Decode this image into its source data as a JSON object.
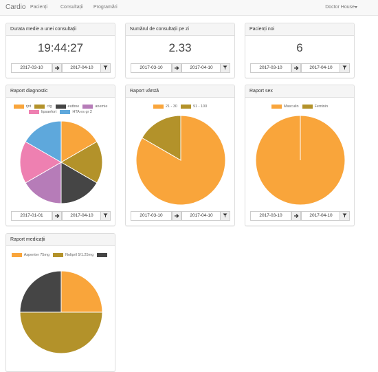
{
  "navbar": {
    "brand": "Cardio",
    "links": [
      "Pacienți",
      "Consultații",
      "Programări"
    ],
    "user": "Doctor House"
  },
  "stats": [
    {
      "title": "Durata medie a unei consultații",
      "value": "19:44:27",
      "from": "2017-03-10",
      "to": "2017-04-10"
    },
    {
      "title": "Numărul de consultații pe zi",
      "value": 2.33,
      "from": "2017-03-10",
      "to": "2017-04-10"
    },
    {
      "title": "Pacienți noi",
      "value": 6,
      "from": "2017-03-10",
      "to": "2017-04-10"
    }
  ],
  "charts": [
    {
      "type": "pie",
      "title": "Raport diagnostic",
      "labels": [
        "rjnt",
        "ctg",
        "eutbne",
        "anemie",
        "lipsaefort",
        "HTA es gr 2"
      ],
      "values": [
        1,
        1,
        1,
        1,
        1,
        1
      ],
      "colors": [
        "#f9a53b",
        "#b3922a",
        "#454545",
        "#b67cb8",
        "#ee80b1",
        "#5ea8dc"
      ],
      "from": "2017-01-01",
      "to": "2017-04-10"
    },
    {
      "type": "pie",
      "title": "Raport vârstă",
      "labels": [
        "21 - 30",
        "91 - 100"
      ],
      "values": [
        5,
        1
      ],
      "colors": [
        "#f9a53b",
        "#b3922a"
      ],
      "from": "2017-03-10",
      "to": "2017-04-10"
    },
    {
      "type": "pie",
      "title": "Raport sex",
      "labels": [
        "Masculin",
        "Feminin"
      ],
      "values": [
        1,
        0
      ],
      "colors": [
        "#f9a53b",
        "#b3922a"
      ],
      "from": "2017-03-10",
      "to": "2017-04-10"
    },
    {
      "type": "pie",
      "title": "Raport medicații",
      "labels": [
        "Aspenter 75mg",
        "Nolipril 5/1.25mg",
        null
      ],
      "values": [
        1,
        2,
        1
      ],
      "colors": [
        "#f9a53b",
        "#b3922a",
        "#454545"
      ]
    }
  ]
}
